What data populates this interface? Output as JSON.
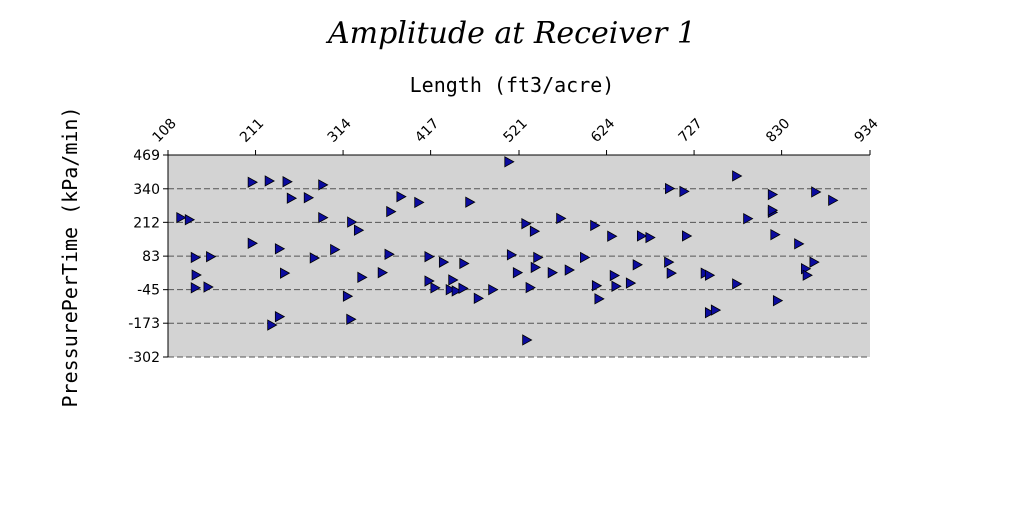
{
  "chart_data": {
    "type": "scatter",
    "title": "Amplitude at Receiver 1",
    "xlabel": "Length (ft3/acre)",
    "ylabel": "PressurePerTime (kPa/min)",
    "x_axis_position": "top",
    "xlim": [
      108,
      934
    ],
    "ylim": [
      -302,
      469
    ],
    "x_ticks": [
      "108",
      "211",
      "314",
      "417",
      "521",
      "624",
      "727",
      "830",
      "934"
    ],
    "y_ticks": [
      "469",
      "340",
      "212",
      "83",
      "-45",
      "-173",
      "-302"
    ],
    "grid": "horizontal dashed",
    "background_color": "#d3d3d3",
    "marker": "triangle-right",
    "marker_color": "#0b0b9e",
    "points": [
      [
        123,
        230
      ],
      [
        133,
        222
      ],
      [
        140,
        78
      ],
      [
        141,
        11
      ],
      [
        140,
        -38
      ],
      [
        155,
        -35
      ],
      [
        158,
        81
      ],
      [
        207,
        365
      ],
      [
        227,
        370
      ],
      [
        248,
        367
      ],
      [
        253,
        304
      ],
      [
        273,
        306
      ],
      [
        207,
        132
      ],
      [
        239,
        111
      ],
      [
        245,
        18
      ],
      [
        230,
        -180
      ],
      [
        239,
        -148
      ],
      [
        290,
        355
      ],
      [
        290,
        230
      ],
      [
        280,
        76
      ],
      [
        304,
        108
      ],
      [
        324,
        213
      ],
      [
        332,
        182
      ],
      [
        319,
        -70
      ],
      [
        323,
        -158
      ],
      [
        336,
        2
      ],
      [
        360,
        20
      ],
      [
        370,
        253
      ],
      [
        382,
        310
      ],
      [
        368,
        90
      ],
      [
        403,
        288
      ],
      [
        415,
        81
      ],
      [
        432,
        60
      ],
      [
        422,
        -38
      ],
      [
        415,
        -12
      ],
      [
        443,
        -8
      ],
      [
        440,
        -45
      ],
      [
        447,
        -50
      ],
      [
        455,
        -40
      ],
      [
        463,
        289
      ],
      [
        456,
        55
      ],
      [
        473,
        -78
      ],
      [
        490,
        -45
      ],
      [
        509,
        443
      ],
      [
        512,
        88
      ],
      [
        519,
        20
      ],
      [
        529,
        207
      ],
      [
        539,
        178
      ],
      [
        534,
        -37
      ],
      [
        530,
        -237
      ],
      [
        543,
        78
      ],
      [
        540,
        40
      ],
      [
        570,
        227
      ],
      [
        560,
        20
      ],
      [
        598,
        78
      ],
      [
        580,
        30
      ],
      [
        610,
        200
      ],
      [
        612,
        -30
      ],
      [
        615,
        -80
      ],
      [
        630,
        159
      ],
      [
        635,
        -32
      ],
      [
        652,
        -20
      ],
      [
        660,
        50
      ],
      [
        665,
        160
      ],
      [
        675,
        154
      ],
      [
        698,
        341
      ],
      [
        697,
        60
      ],
      [
        700,
        18
      ],
      [
        715,
        330
      ],
      [
        718,
        160
      ],
      [
        740,
        18
      ],
      [
        745,
        10
      ],
      [
        745,
        -133
      ],
      [
        752,
        -123
      ],
      [
        777,
        389
      ],
      [
        777,
        -23
      ],
      [
        790,
        226
      ],
      [
        819,
        250
      ],
      [
        819,
        318
      ],
      [
        819,
        258
      ],
      [
        822,
        165
      ],
      [
        825,
        -87
      ],
      [
        850,
        130
      ],
      [
        870,
        328
      ],
      [
        868,
        60
      ],
      [
        890,
        296
      ],
      [
        858,
        35
      ],
      [
        860,
        10
      ],
      [
        633,
        9
      ]
    ]
  }
}
